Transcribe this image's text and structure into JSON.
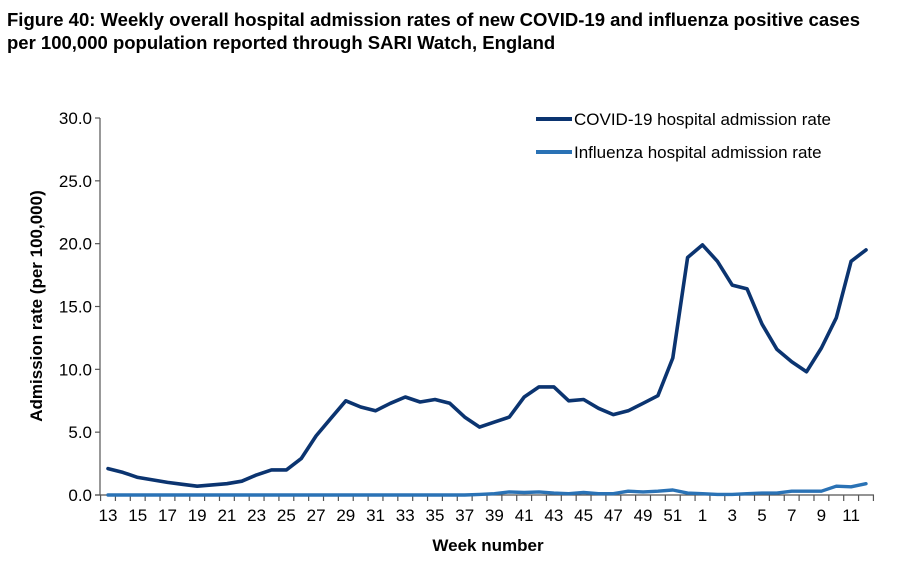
{
  "figure": {
    "title": "Figure 40: Weekly overall hospital admission rates of new COVID-19 and influenza positive cases per 100,000 population reported through SARI Watch, England"
  },
  "chart_data": {
    "type": "line",
    "title": "Figure 40: Weekly overall hospital admission rates of new COVID-19 and influenza positive cases per 100,000 population reported through SARI Watch, England",
    "xlabel": "Week number",
    "ylabel": "Admission rate (per 100,000)",
    "ylim": [
      0,
      30
    ],
    "yticks": [
      "0.0",
      "5.0",
      "10.0",
      "15.0",
      "20.0",
      "25.0",
      "30.0"
    ],
    "x": [
      "13",
      "14",
      "15",
      "16",
      "17",
      "18",
      "19",
      "20",
      "21",
      "22",
      "23",
      "24",
      "25",
      "26",
      "27",
      "28",
      "29",
      "30",
      "31",
      "32",
      "33",
      "34",
      "35",
      "36",
      "37",
      "38",
      "39",
      "40",
      "41",
      "42",
      "43",
      "44",
      "45",
      "46",
      "47",
      "48",
      "49",
      "50",
      "51",
      "52",
      "1",
      "2",
      "3",
      "4",
      "5",
      "6",
      "7",
      "8",
      "9",
      "10",
      "11",
      "12"
    ],
    "xtick_labels": [
      "13",
      "15",
      "17",
      "19",
      "21",
      "23",
      "25",
      "27",
      "29",
      "31",
      "33",
      "35",
      "37",
      "39",
      "41",
      "43",
      "45",
      "47",
      "49",
      "51",
      "1",
      "3",
      "5",
      "7",
      "9",
      "11"
    ],
    "grid": false,
    "legend_position": "top-right",
    "series": [
      {
        "name": "COVID-19 hospital admission rate",
        "color": "#0b3470",
        "values": [
          2.1,
          1.8,
          1.4,
          1.2,
          1.0,
          0.85,
          0.7,
          0.8,
          0.9,
          1.1,
          1.6,
          2.0,
          2.0,
          2.9,
          4.7,
          6.1,
          7.5,
          7.0,
          6.7,
          7.3,
          7.8,
          7.4,
          7.6,
          7.3,
          6.2,
          5.4,
          5.8,
          6.2,
          7.8,
          8.6,
          8.6,
          7.5,
          7.6,
          6.9,
          6.4,
          6.7,
          7.3,
          7.9,
          10.9,
          18.9,
          19.9,
          18.6,
          16.7,
          16.4,
          13.6,
          11.6,
          10.6,
          9.8,
          11.7,
          14.1,
          18.6,
          19.5
        ]
      },
      {
        "name": "Influenza hospital admission rate",
        "color": "#2a72b5",
        "values": [
          0,
          0,
          0,
          0,
          0,
          0,
          0,
          0,
          0,
          0,
          0,
          0,
          0,
          0,
          0,
          0,
          0,
          0,
          0,
          0,
          0,
          0,
          0,
          0,
          0,
          0.05,
          0.1,
          0.25,
          0.2,
          0.25,
          0.15,
          0.1,
          0.2,
          0.1,
          0.1,
          0.3,
          0.25,
          0.3,
          0.4,
          0.15,
          0.1,
          0.05,
          0.05,
          0.1,
          0.15,
          0.15,
          0.3,
          0.3,
          0.3,
          0.7,
          0.65,
          0.9
        ]
      }
    ]
  }
}
